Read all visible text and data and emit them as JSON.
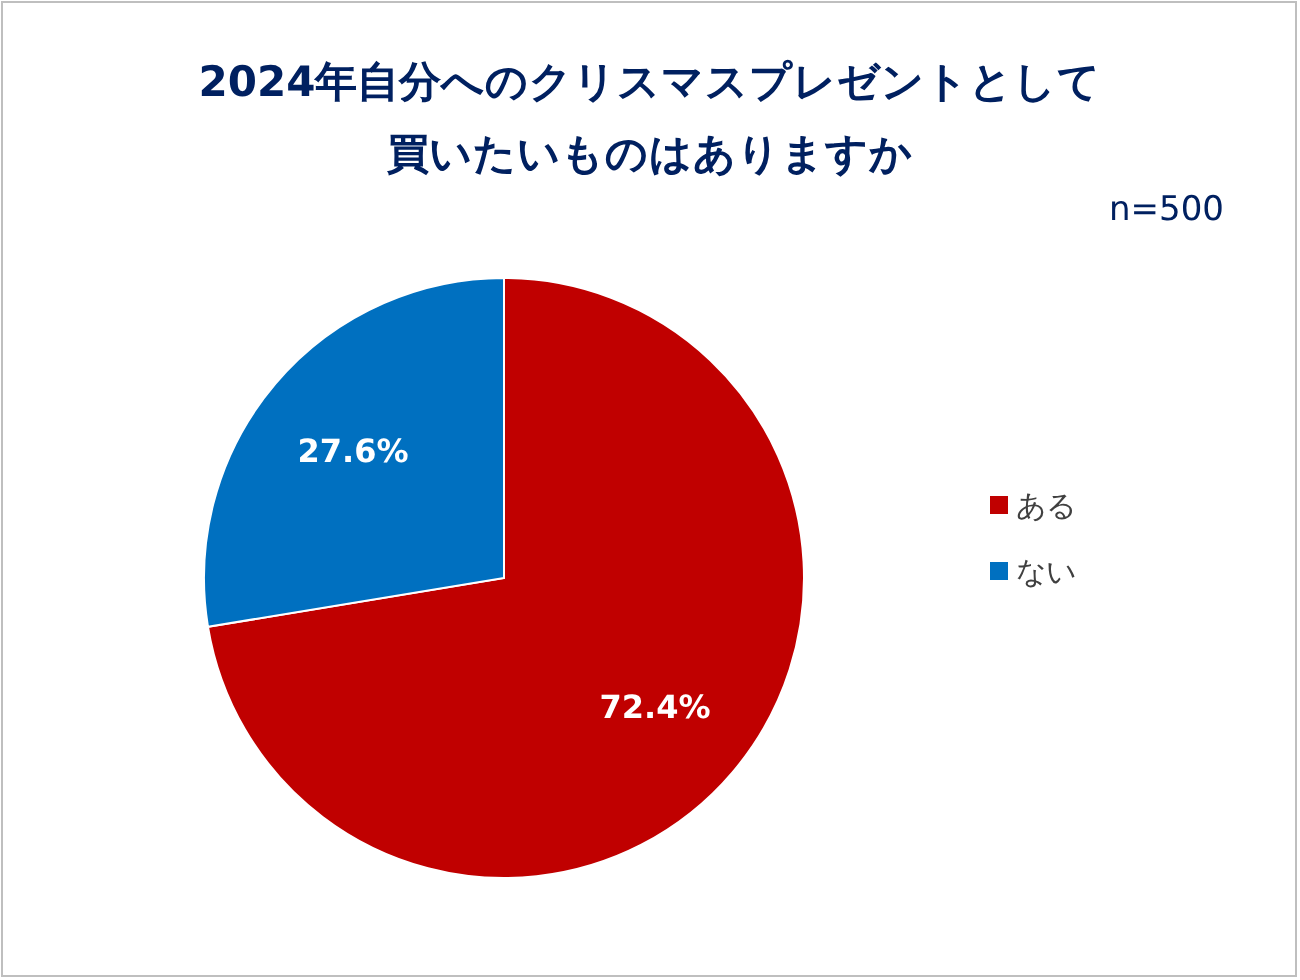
{
  "chart_data": {
    "type": "pie",
    "title": "2024年自分へのクリスマスプレゼントとして",
    "subtitle": "買いたいものはありますか",
    "annotations": [
      "n=500"
    ],
    "categories": [
      "ある",
      "ない"
    ],
    "values": [
      72.4,
      27.6
    ],
    "colors": [
      "#c00000",
      "#0070c0"
    ],
    "value_labels": [
      "72.4%",
      "27.6%"
    ],
    "legend": "right"
  }
}
